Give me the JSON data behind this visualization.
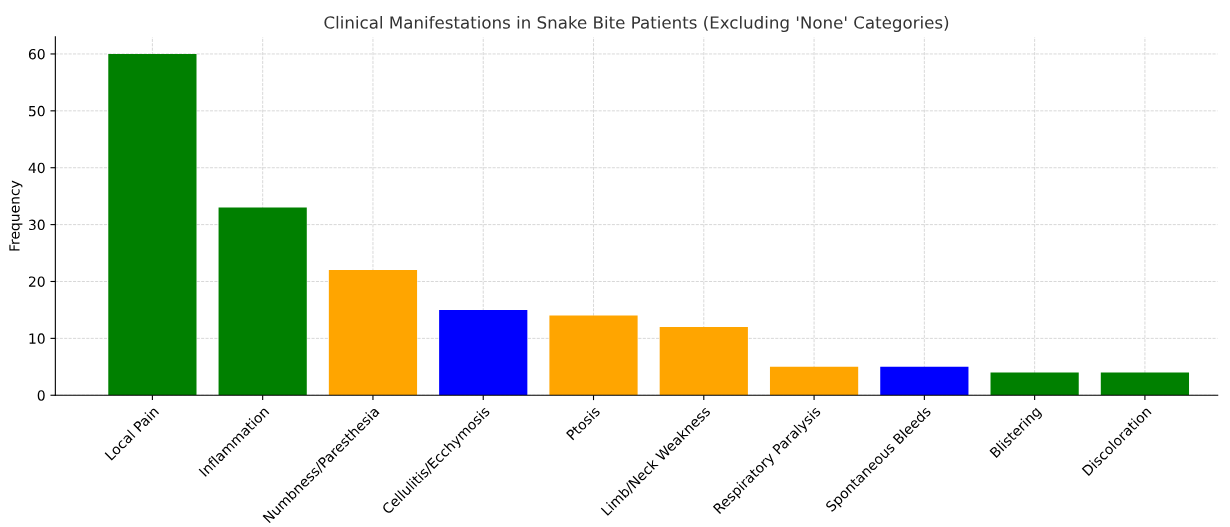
{
  "chart_data": {
    "type": "bar",
    "title": "Clinical Manifestations in Snake Bite Patients (Excluding 'None' Categories)",
    "ylabel": "Frequency",
    "categories": [
      "Local Pain",
      "Inflammation",
      "Numbness/Paresthesia",
      "Cellulitis/Ecchymosis",
      "Ptosis",
      "Limb/Neck Weakness",
      "Respiratory Paralysis",
      "Spontaneous Bleeds",
      "Blistering",
      "Discoloration"
    ],
    "values": [
      60,
      33,
      22,
      15,
      14,
      12,
      5,
      5,
      4,
      4
    ],
    "colors": [
      "#008000",
      "#008000",
      "#ffa500",
      "#0000ff",
      "#ffa500",
      "#ffa500",
      "#ffa500",
      "#0000ff",
      "#008000",
      "#008000"
    ],
    "ylim": [
      0,
      63
    ],
    "yticks": [
      0,
      10,
      20,
      30,
      40,
      50,
      60
    ],
    "grid": true
  }
}
